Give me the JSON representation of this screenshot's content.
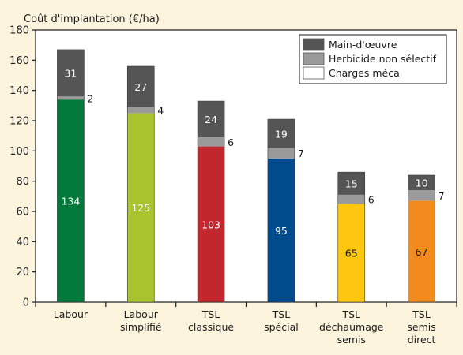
{
  "chart_data": {
    "type": "bar",
    "stacked": true,
    "title": "Coût d'implantation (€/ha)",
    "categories": [
      [
        "Labour"
      ],
      [
        "Labour",
        "simplifié"
      ],
      [
        "TSL",
        "classique"
      ],
      [
        "TSL",
        "spécial"
      ],
      [
        "TSL",
        "déchaumage",
        "semis"
      ],
      [
        "TSL",
        "semis",
        "direct"
      ]
    ],
    "series": [
      {
        "name": "Charges méca",
        "values": [
          134,
          125,
          103,
          95,
          65,
          67
        ]
      },
      {
        "name": "Herbicide non sélectif",
        "values": [
          2,
          4,
          6,
          7,
          6,
          7
        ]
      },
      {
        "name": "Main-d'œuvre",
        "values": [
          31,
          27,
          24,
          19,
          15,
          10
        ]
      }
    ],
    "bar_colors": [
      "#00793a",
      "#a9c32e",
      "#c1272d",
      "#004b8d",
      "#fdc70f",
      "#f28a1e"
    ],
    "herbicide_color": "#9a9a9a",
    "main_oeuvre_color": "#555555",
    "legend": {
      "placement": "top-right",
      "items": [
        {
          "label": "Main-d'œuvre",
          "color": "#555555"
        },
        {
          "label": "Herbicide non sélectif",
          "color": "#9a9a9a"
        },
        {
          "label": "Charges méca",
          "color": "#ffffff"
        }
      ]
    },
    "ylim": [
      0,
      180
    ],
    "yticks": [
      0,
      20,
      40,
      60,
      80,
      100,
      120,
      140,
      160,
      180
    ],
    "grid": false
  }
}
